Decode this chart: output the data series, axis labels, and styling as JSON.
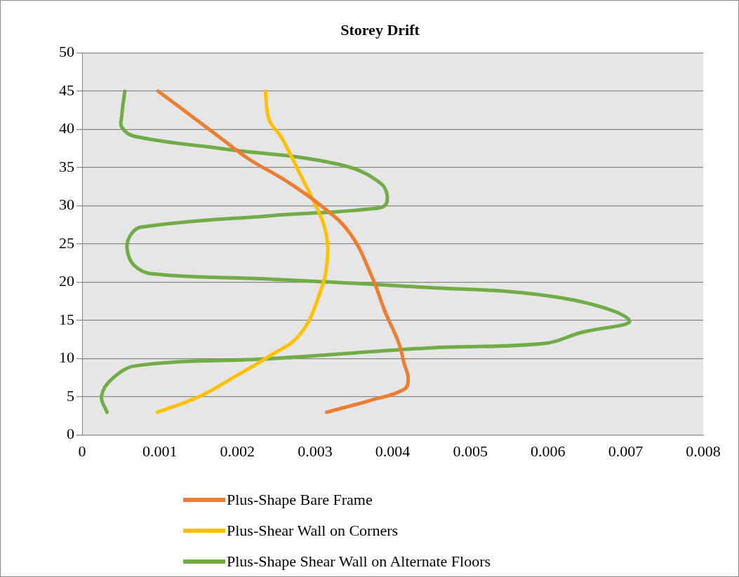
{
  "chart_data": {
    "type": "line",
    "title": "Storey Drift",
    "xlim": [
      0,
      0.008
    ],
    "xticks": [
      0,
      0.001,
      0.002,
      0.003,
      0.004,
      0.005,
      0.006,
      0.007,
      0.008
    ],
    "ylim": [
      0,
      50
    ],
    "yticks": [
      0,
      5,
      10,
      15,
      20,
      25,
      30,
      35,
      40,
      45,
      50
    ],
    "grid": "y",
    "legend": "bottom",
    "marker": "none",
    "line_style": "solid",
    "series": [
      {
        "name": "Plus-Shape Bare Frame",
        "color": "#ed7d31",
        "x": [
          0.00315,
          0.0037,
          0.00415,
          0.0042,
          0.00415,
          0.00408,
          0.0039,
          0.00373,
          0.00345,
          0.00308,
          0.00262,
          0.00215,
          0.00178,
          0.00136,
          0.00098
        ],
        "values": [
          3,
          4.5,
          6,
          7.4,
          9.3,
          12,
          16.2,
          20.8,
          26.4,
          30,
          33.3,
          36.1,
          38.9,
          42.1,
          45
        ]
      },
      {
        "name": "Plus-Shear Wall on Corners",
        "color": "#ffc000",
        "x": [
          0.00097,
          0.0015,
          0.00201,
          0.00239,
          0.0028,
          0.00306,
          0.00316,
          0.00313,
          0.00301,
          0.0028,
          0.00257,
          0.00241,
          0.00236
        ],
        "values": [
          3,
          5,
          7.9,
          10.2,
          13.1,
          18.5,
          23.1,
          26.9,
          30,
          34.3,
          38.9,
          41.2,
          45
        ]
      },
      {
        "name": "Plus-Shape Shear Wall on Alternate Floors",
        "color": "#70ad47",
        "x": [
          0.00032,
          0.00025,
          0.00039,
          0.00071,
          0.00243,
          0.00447,
          0.00596,
          0.00642,
          0.00705,
          0.00614,
          0.00429,
          0.00243,
          0.0009,
          0.00067,
          0.00058,
          0.00062,
          0.00076,
          0.00243,
          0.00373,
          0.00392,
          0.00385,
          0.00327,
          0.00178,
          0.00067,
          0.00051,
          0.00051,
          0.00055
        ],
        "values": [
          3,
          5.1,
          7.4,
          9.1,
          10,
          11.4,
          12,
          13.4,
          15,
          18,
          19.4,
          20.4,
          21.1,
          22.2,
          24.3,
          26.1,
          27.2,
          28.7,
          29.6,
          30.3,
          32.9,
          35.5,
          37.5,
          39.1,
          40.3,
          41.7,
          45
        ]
      }
    ]
  }
}
